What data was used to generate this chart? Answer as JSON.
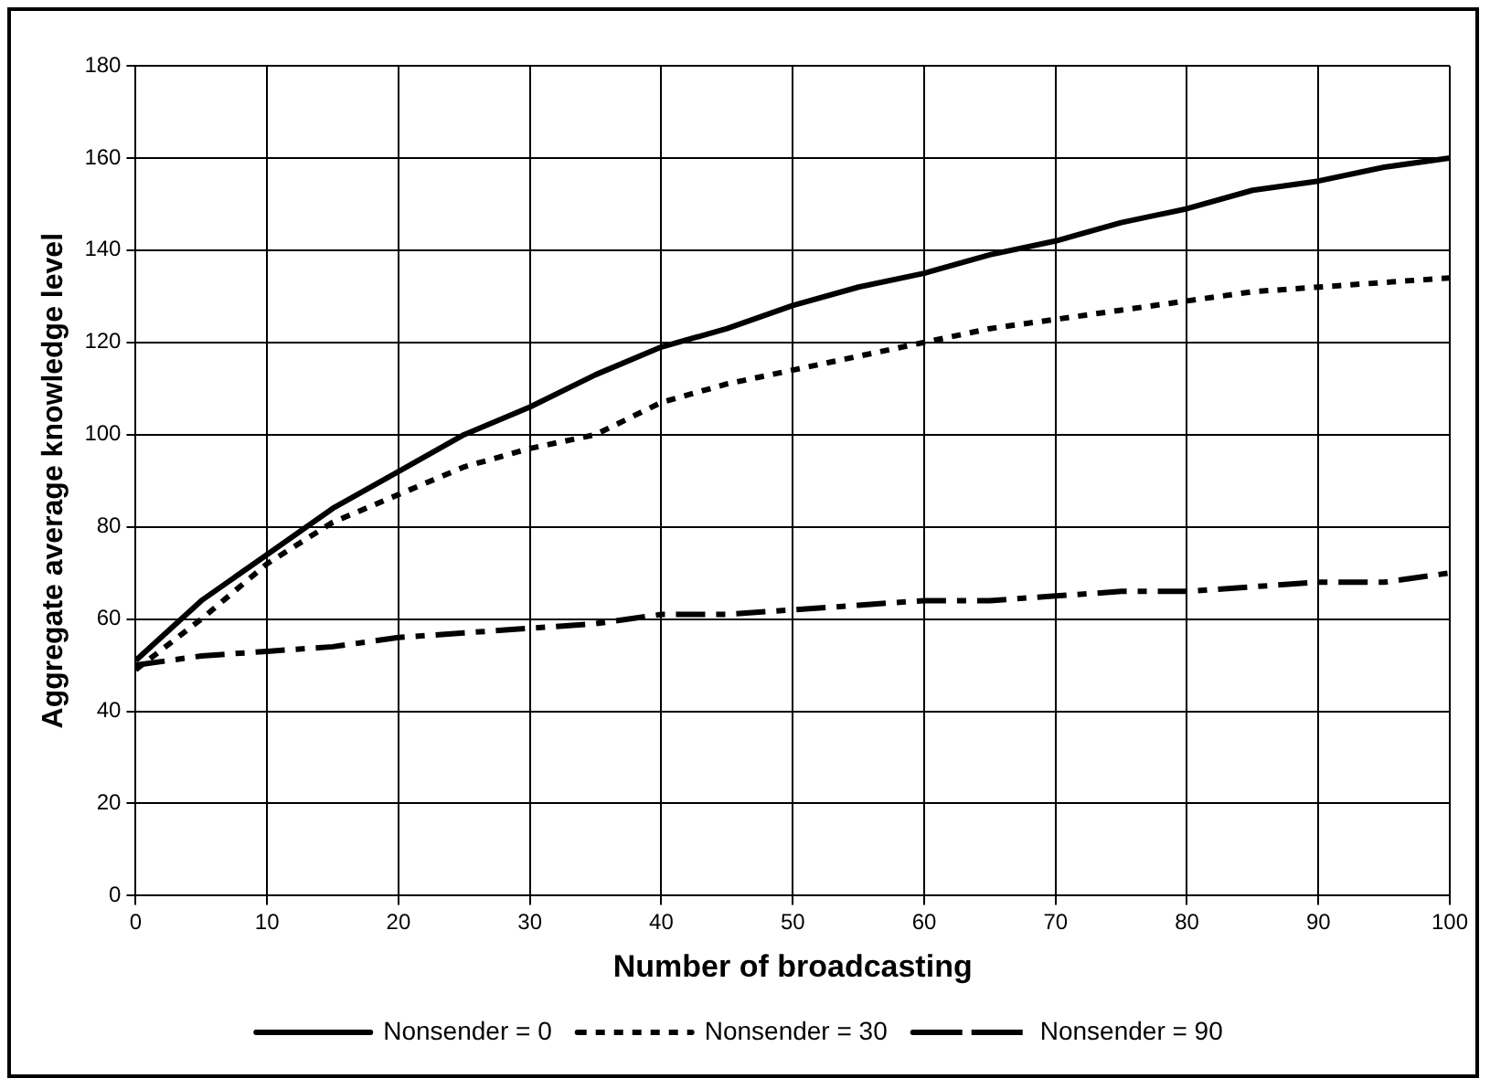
{
  "chart_data": {
    "type": "line",
    "xlabel": "Number of broadcasting",
    "ylabel": "Aggregate average knowledge level",
    "x": [
      0,
      5,
      10,
      15,
      20,
      25,
      30,
      35,
      40,
      45,
      50,
      55,
      60,
      65,
      70,
      75,
      80,
      85,
      90,
      95,
      100
    ],
    "xlim": [
      0,
      100
    ],
    "xticks": [
      0,
      10,
      20,
      30,
      40,
      50,
      60,
      70,
      80,
      90,
      100
    ],
    "ylim": [
      0,
      180
    ],
    "yticks": [
      0,
      20,
      40,
      60,
      80,
      100,
      120,
      140,
      160,
      180
    ],
    "grid": true,
    "legend": "bottom",
    "marker": "none",
    "series": [
      {
        "name": "Nonsender = 0",
        "color": "#000000",
        "line_style": "solid",
        "values": [
          51,
          64,
          74,
          84,
          92,
          100,
          106,
          113,
          119,
          123,
          128,
          132,
          135,
          139,
          142,
          146,
          149,
          153,
          155,
          158,
          160
        ]
      },
      {
        "name": "Nonsender = 30",
        "color": "#000000",
        "line_style": "dotted",
        "values": [
          49,
          60,
          72,
          81,
          87,
          93,
          97,
          100,
          107,
          111,
          114,
          117,
          120,
          123,
          125,
          127,
          129,
          131,
          132,
          133,
          134
        ]
      },
      {
        "name": "Nonsender = 90",
        "color": "#000000",
        "line_style": "dashed",
        "values": [
          50,
          52,
          53,
          54,
          56,
          57,
          58,
          59,
          61,
          61,
          62,
          63,
          64,
          64,
          65,
          66,
          66,
          67,
          68,
          68,
          70
        ]
      }
    ]
  }
}
